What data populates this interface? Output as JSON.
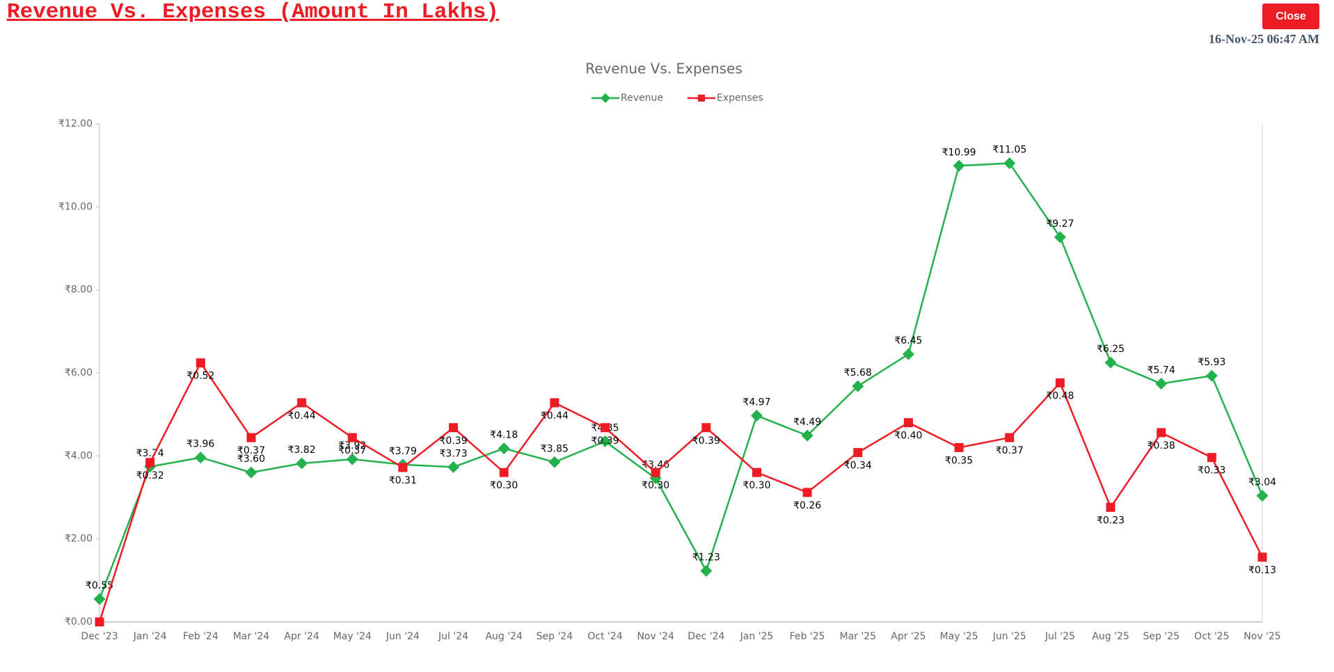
{
  "header": {
    "title": "Revenue Vs. Expenses (Amount In Lakhs)",
    "close_button": "Close",
    "timestamp": "16-Nov-25  06:47 AM"
  },
  "chart_data": {
    "type": "line",
    "title": "Revenue Vs. Expenses",
    "categories": [
      "Dec '23",
      "Jan '24",
      "Feb '24",
      "Mar '24",
      "Apr '24",
      "May '24",
      "Jun '24",
      "Jul '24",
      "Aug '24",
      "Sep '24",
      "Oct '24",
      "Nov '24",
      "Dec '24",
      "Jan '25",
      "Feb '25",
      "Mar '25",
      "Apr '25",
      "May '25",
      "Jun '25",
      "Jul '25",
      "Aug '25",
      "Sep '25",
      "Oct '25",
      "Nov '25"
    ],
    "series": [
      {
        "name": "Revenue",
        "color": "#22b14c",
        "marker": "diamond",
        "values": [
          0.55,
          3.74,
          3.96,
          3.6,
          3.82,
          3.92,
          3.79,
          3.73,
          4.18,
          3.85,
          4.35,
          3.46,
          1.23,
          4.97,
          4.49,
          5.68,
          6.45,
          10.99,
          11.05,
          9.27,
          6.25,
          5.74,
          5.93,
          3.04
        ],
        "value_labels": [
          "₹0.55",
          "₹3.74",
          "₹3.96",
          "₹3.60",
          "₹3.82",
          "₹3.92",
          "₹3.79",
          "₹3.73",
          "₹4.18",
          "₹3.85",
          "₹4.35",
          "₹3.46",
          "₹1.23",
          "₹4.97",
          "₹4.49",
          "₹5.68",
          "₹6.45",
          "₹10.99",
          "₹11.05",
          "₹9.27",
          "₹6.25",
          "₹5.74",
          "₹5.93",
          "₹3.04"
        ]
      },
      {
        "name": "Expenses",
        "color": "#ed1c24",
        "marker": "square",
        "axis": "y2",
        "values": [
          0,
          0.32,
          0.52,
          0.37,
          0.44,
          0.37,
          0.31,
          0.39,
          0.3,
          0.44,
          0.39,
          0.3,
          0.39,
          0.3,
          0.26,
          0.34,
          0.4,
          0.35,
          0.37,
          0.48,
          0.23,
          0.38,
          0.33,
          0.13
        ],
        "value_labels": [
          null,
          "₹0.32",
          "₹0.52",
          "₹0.37",
          "₹0.44",
          "₹0.37",
          "₹0.31",
          "₹0.39",
          "₹0.30",
          "₹0.44",
          "₹0.39",
          "₹0.30",
          "₹0.39",
          "₹0.30",
          "₹0.26",
          "₹0.34",
          "₹0.40",
          "₹0.35",
          "₹0.37",
          "₹0.48",
          "₹0.23",
          "₹0.38",
          "₹0.33",
          "₹0.13"
        ]
      }
    ],
    "ylim": [
      0,
      12
    ],
    "yticks": [
      {
        "value": 0,
        "label": "₹0.00"
      },
      {
        "value": 2,
        "label": "₹2.00"
      },
      {
        "value": 4,
        "label": "₹4.00"
      },
      {
        "value": 6,
        "label": "₹6.00"
      },
      {
        "value": 8,
        "label": "₹8.00"
      },
      {
        "value": 10,
        "label": "₹10.00"
      },
      {
        "value": 12,
        "label": "₹12.00"
      }
    ],
    "y2lim": [
      0,
      1
    ],
    "legend": "top"
  }
}
